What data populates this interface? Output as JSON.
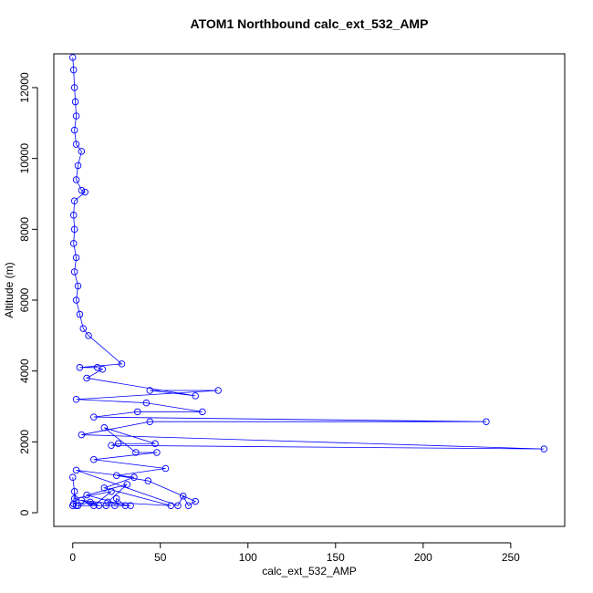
{
  "chart_data": {
    "type": "line",
    "title": "ATOM1 Northbound calc_ext_532_AMP",
    "x_label": "calc_ext_532_AMP",
    "y_label": "Altitude (m)",
    "color": "#0000ff",
    "markers": "open-circle",
    "xlim": [
      -10.8,
      280.8
    ],
    "ylim": [
      -386,
      12953
    ],
    "xticks": [
      0,
      50,
      100,
      150,
      200,
      250
    ],
    "yticks": [
      0,
      2000,
      4000,
      6000,
      8000,
      10000,
      12000
    ],
    "x": [
      0,
      0.5,
      1,
      1.5,
      2,
      1,
      2,
      5,
      3,
      2,
      5,
      7,
      1,
      0.5,
      1,
      0.5,
      2,
      1,
      3,
      2,
      4,
      6,
      9,
      28,
      4,
      14,
      17,
      8,
      70,
      44,
      83,
      2,
      42,
      74,
      37,
      12,
      236,
      44,
      5,
      269,
      22,
      26,
      47,
      18,
      36,
      48,
      12,
      53,
      25,
      43,
      70,
      66,
      63,
      60,
      2,
      35,
      18,
      56,
      20,
      31,
      8,
      30,
      25,
      24,
      19,
      3,
      10,
      15,
      1,
      22,
      12,
      5,
      33,
      2,
      0,
      1,
      0.5,
      0
    ],
    "values": [
      12850,
      12500,
      12000,
      11600,
      11200,
      10800,
      10400,
      10200,
      9800,
      9400,
      9100,
      9050,
      8800,
      8400,
      8000,
      7600,
      7200,
      6800,
      6400,
      6000,
      5600,
      5200,
      5000,
      4200,
      4100,
      4100,
      4050,
      3800,
      3300,
      3450,
      3450,
      3200,
      3100,
      2850,
      2850,
      2700,
      2570,
      2570,
      2200,
      1800,
      1900,
      1950,
      1950,
      2400,
      1700,
      1700,
      1500,
      1250,
      1050,
      900,
      320,
      200,
      470,
      200,
      1200,
      1000,
      700,
      200,
      300,
      800,
      500,
      200,
      400,
      200,
      200,
      200,
      300,
      200,
      400,
      600,
      200,
      350,
      200,
      200,
      1000,
      600,
      250,
      200
    ]
  }
}
